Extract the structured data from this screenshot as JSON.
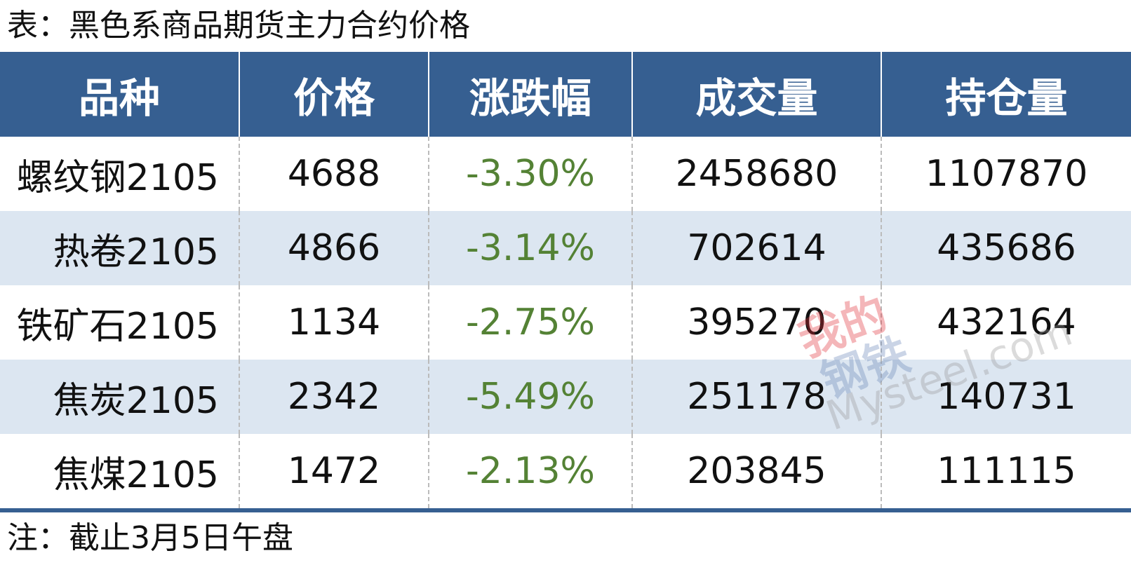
{
  "title": "表：黑色系商品期货主力合约价格",
  "table": {
    "header": [
      "品种",
      "价格",
      "涨跌幅",
      "成交量",
      "持仓量"
    ],
    "rows": [
      [
        "螺纹钢2105",
        "4688",
        "-3.30%",
        "2458680",
        "1107870"
      ],
      [
        "热卷2105",
        "4866",
        "-3.14%",
        "702614",
        "435686"
      ],
      [
        "铁矿石2105",
        "1134",
        "-2.75%",
        "395270",
        "432164"
      ],
      [
        "焦炭2105",
        "2342",
        "-5.49%",
        "251178",
        "140731"
      ],
      [
        "焦煤2105",
        "1472",
        "-2.13%",
        "203845",
        "111115"
      ]
    ]
  },
  "watermark": {
    "line1": "我的",
    "line2": "钢铁",
    "site": "Mysteel.com"
  },
  "note": "注：截止3月5日午盘"
}
